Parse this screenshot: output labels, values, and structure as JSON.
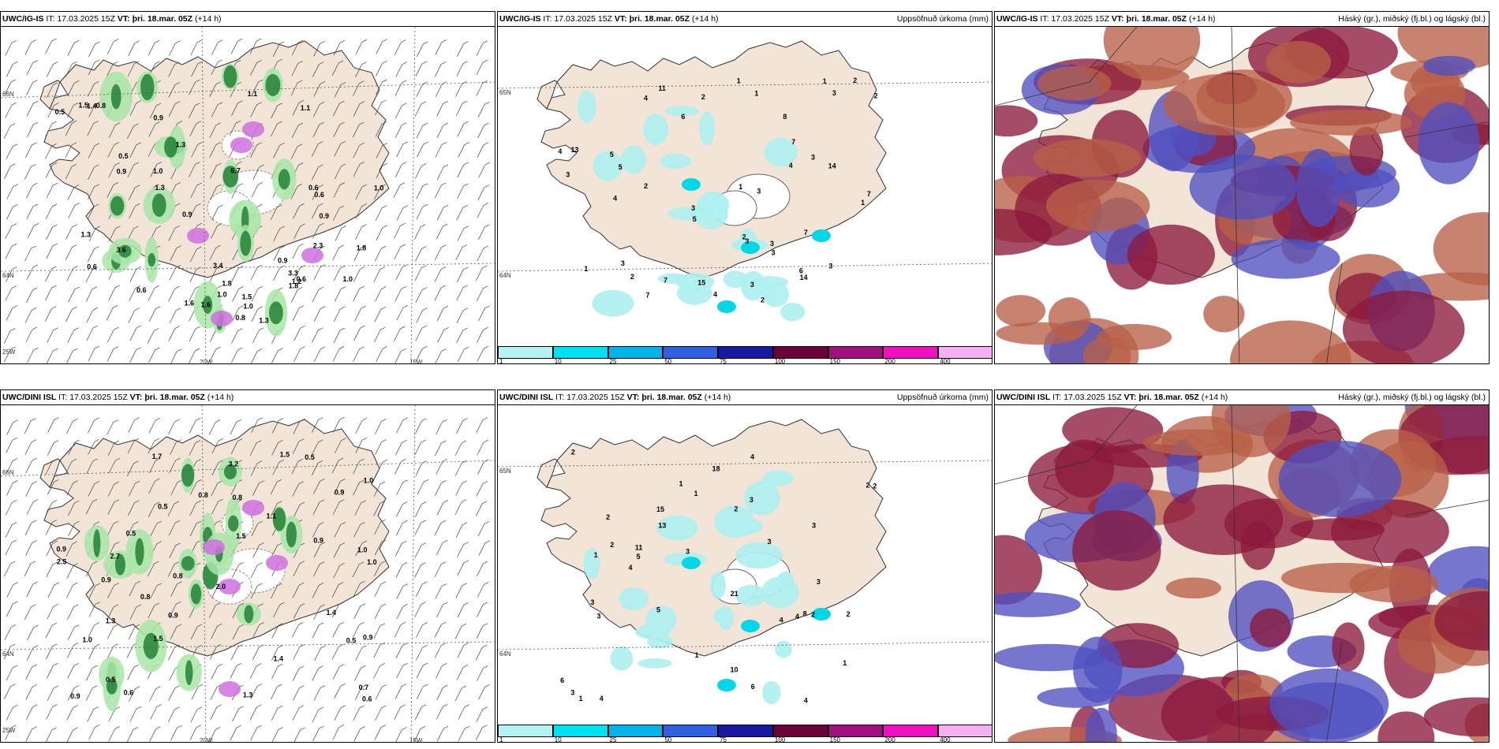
{
  "colors": {
    "land": "#f2e4d6",
    "precip_light": "#aef0f0",
    "precip_mid": "#00d8e8",
    "green_light": "#a8e6a8",
    "green_dark": "#1a7a30",
    "magenta": "#d070e0",
    "cloud_high": "#8c1a3c",
    "cloud_mid": "#5050c0",
    "cloud_low": "#b86048"
  },
  "rows": [
    {
      "model": "UWC/IG-IS",
      "panels": [
        {
          "model": "UWC/IG-IS",
          "it_label": "IT:",
          "it": "17.03.2025 15Z",
          "vt_label": "VT:",
          "vt": "þri. 18.mar. 05Z",
          "lead": "(+14 h)",
          "right": "",
          "grid_labels": [
            "66N",
            "64N",
            "25W",
            "20W",
            "15W"
          ],
          "values": [
            "1.6",
            "1.8",
            "6.7",
            "0.5",
            "1.0",
            "0.6",
            "1.0",
            "1.3",
            "0.6",
            "0.5",
            "3.6",
            "1.0",
            "1.6",
            "1.3",
            "1.1",
            "1.0",
            "3.3",
            "1.2",
            "1.8",
            "0.6",
            "0.8",
            "0.9",
            "0.9",
            "1.3",
            "1.5",
            "0.6",
            "1.1",
            "0.8",
            "0.9",
            "1.0",
            "1.5",
            "0.9",
            "2.3",
            "3.4",
            "1.8",
            "1.3",
            "1.4",
            "0.6",
            "0.9"
          ]
        },
        {
          "model": "UWC/IG-IS",
          "it_label": "IT:",
          "it": "17.03.2025 15Z",
          "vt_label": "VT:",
          "vt": "þri. 18.mar. 05Z",
          "lead": "(+14 h)",
          "right": "Uppsöfnuð úrkoma (mm)",
          "grid_labels": [
            "65N",
            "64N"
          ],
          "values": [
            "2",
            "4",
            "3",
            "5",
            "3",
            "3",
            "1",
            "2",
            "5",
            "2",
            "1",
            "4",
            "3",
            "2",
            "4",
            "1",
            "3",
            "3",
            "7",
            "14",
            "6",
            "3",
            "7",
            "14",
            "3",
            "7",
            "4",
            "5",
            "4",
            "6",
            "3",
            "2",
            "8",
            "7",
            "11",
            "15",
            "1",
            "13",
            "7",
            "3",
            "2",
            "1",
            "2",
            "3",
            "1"
          ],
          "colorbar": [
            "1",
            "10",
            "25",
            "50",
            "75",
            "100",
            "150",
            "200",
            "400"
          ]
        },
        {
          "model": "UWC/IG-IS",
          "it_label": "IT:",
          "it": "17.03.2025 15Z",
          "vt_label": "VT:",
          "vt": "þri. 18.mar. 05Z",
          "lead": "(+14 h)",
          "right": "Háský (gr.), miðský (fj.bl.) og lágský (bl.)"
        }
      ]
    },
    {
      "model": "UWC/DINI ISL",
      "panels": [
        {
          "model": "UWC/DINI ISL",
          "it_label": "IT:",
          "it": "17.03.2025 15Z",
          "vt_label": "VT:",
          "vt": "þri. 18.mar. 05Z",
          "lead": "(+14 h)",
          "right": "",
          "grid_labels": [
            "66N",
            "64N",
            "25W",
            "20W",
            "15W"
          ],
          "values": [
            "0.5",
            "1.0",
            "1.1",
            "1.0",
            "0.8",
            "0.9",
            "0.9",
            "1.5",
            "0.5",
            "0.9",
            "0.5",
            "1.4",
            "0.9",
            "1.5",
            "1.0",
            "2.0",
            "0.8",
            "0.9",
            "1.7",
            "0.8",
            "0.7",
            "0.8",
            "0.5",
            "1.3",
            "1.5",
            "0.5",
            "0.9",
            "1.4",
            "1.3",
            "1.0",
            "0.6",
            "0.6",
            "0.9",
            "3.2",
            "2.7",
            "2.5"
          ]
        },
        {
          "model": "UWC/DINI ISL",
          "it_label": "IT:",
          "it": "17.03.2025 15Z",
          "vt_label": "VT:",
          "vt": "þri. 18.mar. 05Z",
          "lead": "(+14 h)",
          "right": "Uppsöfnuð úrkoma (mm)",
          "grid_labels": [
            "65N",
            "64N"
          ],
          "values": [
            "2",
            "4",
            "5",
            "3",
            "2",
            "1",
            "3",
            "1",
            "10",
            "2",
            "1",
            "2",
            "4",
            "5",
            "3",
            "4",
            "3",
            "3",
            "4",
            "18",
            "21",
            "13",
            "11",
            "4",
            "6",
            "4",
            "3",
            "15",
            "8",
            "6",
            "3",
            "2",
            "2",
            "1",
            "2",
            "1",
            "3",
            "2",
            "1"
          ],
          "colorbar": [
            "1",
            "10",
            "25",
            "50",
            "75",
            "100",
            "150",
            "200",
            "400"
          ]
        },
        {
          "model": "UWC/DINI ISL",
          "it_label": "IT:",
          "it": "17.03.2025 15Z",
          "vt_label": "VT:",
          "vt": "þri. 18.mar. 05Z",
          "lead": "(+14 h)",
          "right": "Háský (gr.), miðský (fj.bl.) og lágský (bl.)"
        }
      ]
    }
  ]
}
